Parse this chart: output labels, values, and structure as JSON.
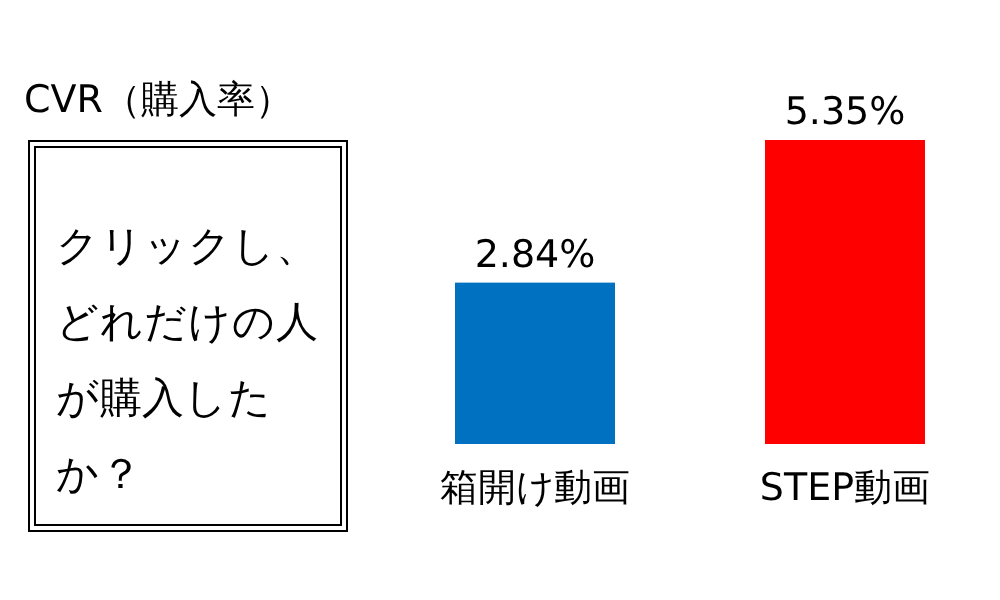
{
  "chart_data": {
    "type": "bar",
    "title": "CVR（購入率）",
    "categories": [
      "箱開け動画",
      "STEP動画"
    ],
    "values": [
      2.84,
      5.35
    ],
    "colors": [
      "#0070c0",
      "#ff0000"
    ],
    "value_labels": [
      "2.84%",
      "5.35%"
    ],
    "annotations": [
      "クリックし、どれだけの人が購入したか？"
    ]
  }
}
